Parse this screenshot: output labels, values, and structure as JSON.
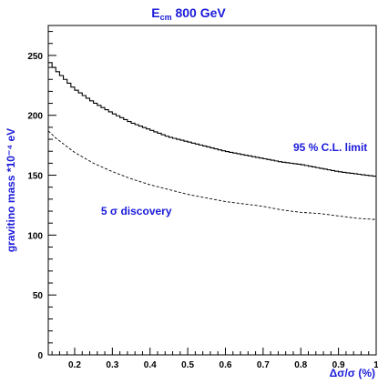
{
  "chart_data": {
    "type": "line",
    "title": {
      "main": "E",
      "subscript": "cm",
      "rest": " 800 GeV"
    },
    "xlabel": "Δσ/σ  (%)",
    "ylabel": "gravitino mass *10⁻⁴ eV",
    "xlim": [
      0.13,
      1.0
    ],
    "ylim": [
      0,
      275
    ],
    "x_ticks": [
      "0.2",
      "0.3",
      "0.4",
      "0.5",
      "0.6",
      "0.7",
      "0.8",
      "0.9",
      "1"
    ],
    "y_ticks": [
      "0",
      "50",
      "100",
      "150",
      "200",
      "250"
    ],
    "grid": false,
    "series": [
      {
        "name": "95 % C.L. limit",
        "style": "solid-step",
        "x": [
          0.13,
          0.15,
          0.2,
          0.25,
          0.3,
          0.35,
          0.4,
          0.45,
          0.5,
          0.55,
          0.6,
          0.65,
          0.7,
          0.75,
          0.8,
          0.85,
          0.9,
          0.95,
          1.0
        ],
        "y": [
          246,
          238,
          222,
          211,
          202,
          194,
          188,
          182,
          178,
          174,
          170,
          167,
          164,
          161,
          159,
          156,
          153,
          151,
          149
        ]
      },
      {
        "name": "5 σ discovery",
        "style": "dashed",
        "x": [
          0.13,
          0.15,
          0.2,
          0.25,
          0.3,
          0.35,
          0.4,
          0.45,
          0.5,
          0.55,
          0.6,
          0.65,
          0.7,
          0.75,
          0.8,
          0.85,
          0.9,
          0.95,
          1.0
        ],
        "y": [
          187,
          181,
          169,
          160,
          153,
          147,
          142,
          138,
          134,
          131,
          128,
          126,
          124,
          121,
          119,
          118,
          116,
          114,
          113
        ]
      }
    ],
    "annotations": [
      {
        "text": "95 % C.L. limit",
        "x": 0.78,
        "y": 170
      },
      {
        "text": "5 σ discovery",
        "x": 0.27,
        "y": 117
      }
    ],
    "colors": {
      "text": "#1a1adb",
      "axis": "#000000",
      "lines": "#000000"
    }
  }
}
